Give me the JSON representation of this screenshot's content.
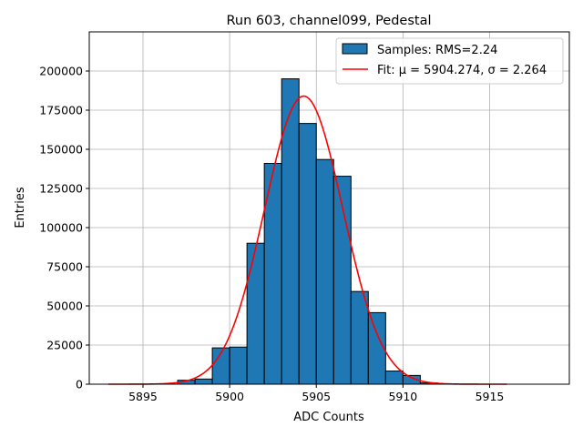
{
  "chart_data": {
    "type": "bar",
    "title": "Run 603, channel099, Pedestal",
    "xlabel": "ADC Counts",
    "ylabel": "Entries",
    "xlim": [
      5891.9,
      5919.6
    ],
    "ylim": [
      0,
      225000
    ],
    "grid": true,
    "legend_position": "top-right",
    "xticks": [
      5895,
      5900,
      5905,
      5910,
      5915
    ],
    "yticks": [
      0,
      25000,
      50000,
      75000,
      100000,
      125000,
      150000,
      175000,
      200000
    ],
    "histogram": {
      "name": "Samples: RMS=2.24",
      "color": "#1f77b4",
      "bin_width": 1,
      "bin_left_edges": [
        5897,
        5898,
        5899,
        5900,
        5901,
        5902,
        5903,
        5904,
        5905,
        5906,
        5907,
        5908,
        5909,
        5910,
        5911
      ],
      "values": [
        2500,
        3300,
        23200,
        23700,
        90000,
        141000,
        195000,
        166500,
        143500,
        132800,
        59200,
        45700,
        8400,
        5600,
        800
      ]
    },
    "fit": {
      "name": "Fit: μ = 5904.274, σ = 2.264",
      "color": "#ff0000",
      "mu": 5904.274,
      "sigma": 2.264,
      "amplitude": 184000,
      "x_range": [
        5893,
        5916
      ]
    }
  }
}
